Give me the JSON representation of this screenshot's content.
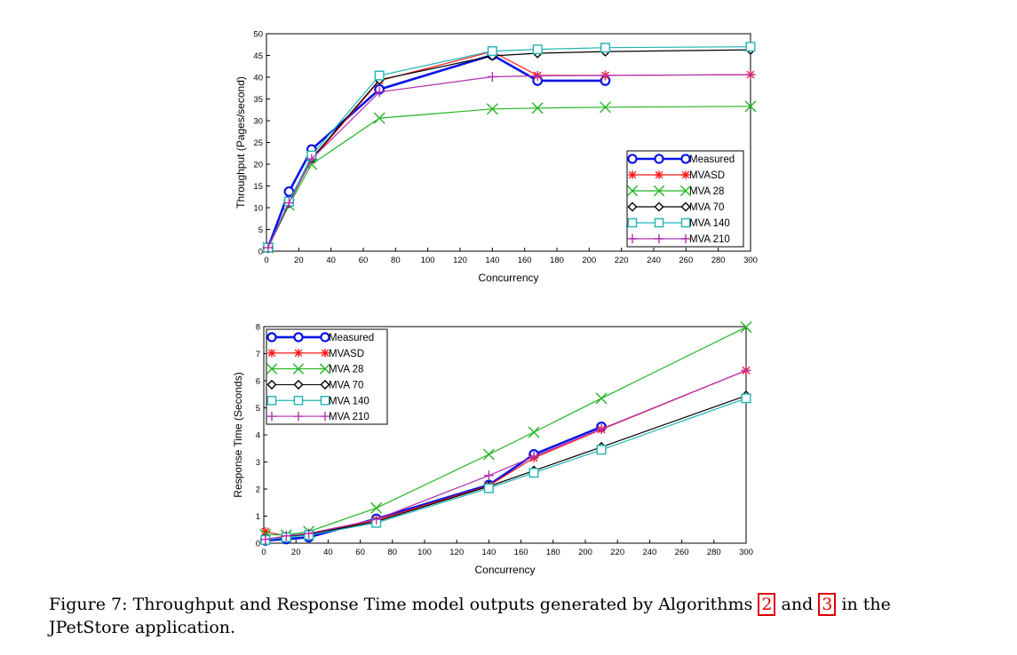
{
  "caption": {
    "prefix": "Figure 7: Throughput and Response Time model outputs generated by Algorithms",
    "ref1": "2",
    "mid": "and",
    "ref2": "3",
    "suffix": "in the JPetStore application."
  },
  "colors": {
    "Measured": "#0a14e6",
    "MVASD": "#ff1a1a",
    "MVA 28": "#22b422",
    "MVA 70": "#000000",
    "MVA 140": "#1fb3b3",
    "MVA 210": "#b030b0"
  },
  "chart_data": [
    {
      "type": "line",
      "xlabel": "Concurrency",
      "ylabel": "Throughput (Pages/second)",
      "xlim": [
        0,
        300
      ],
      "ylim": [
        0,
        50
      ],
      "xticks": [
        0,
        20,
        40,
        60,
        80,
        100,
        120,
        140,
        160,
        180,
        200,
        220,
        240,
        260,
        280,
        300
      ],
      "yticks": [
        0,
        5,
        10,
        15,
        20,
        25,
        30,
        35,
        40,
        45,
        50
      ],
      "legend_position": "bottom-right",
      "grid": false,
      "series": [
        {
          "name": "Measured",
          "marker": "circle",
          "x": [
            1,
            14,
            28,
            70,
            140,
            168,
            210
          ],
          "y": [
            0.8,
            13.7,
            23.4,
            37.2,
            45.1,
            39.2,
            39.2
          ]
        },
        {
          "name": "MVASD",
          "marker": "asterisk",
          "x": [
            1,
            14,
            28,
            70,
            140,
            168,
            210,
            300
          ],
          "y": [
            0.8,
            11.2,
            21.0,
            39.2,
            45.9,
            40.4,
            40.4,
            40.6
          ]
        },
        {
          "name": "MVA 28",
          "marker": "x",
          "x": [
            1,
            14,
            28,
            70,
            140,
            168,
            210,
            300
          ],
          "y": [
            0.8,
            10.6,
            20.0,
            30.6,
            32.7,
            32.9,
            33.1,
            33.3
          ]
        },
        {
          "name": "MVA 70",
          "marker": "diamond",
          "x": [
            1,
            14,
            28,
            70,
            140,
            168,
            210,
            300
          ],
          "y": [
            0.8,
            11.0,
            21.3,
            39.4,
            44.9,
            45.5,
            45.9,
            46.3
          ]
        },
        {
          "name": "MVA 140",
          "marker": "square",
          "x": [
            1,
            14,
            28,
            70,
            140,
            168,
            210,
            300
          ],
          "y": [
            0.8,
            11.4,
            22.0,
            40.4,
            46.0,
            46.4,
            46.8,
            47.0
          ]
        },
        {
          "name": "MVA 210",
          "marker": "plus",
          "x": [
            1,
            14,
            28,
            70,
            140,
            168,
            210,
            300
          ],
          "y": [
            0.8,
            11.1,
            21.2,
            36.6,
            40.1,
            40.3,
            40.4,
            40.6
          ]
        }
      ]
    },
    {
      "type": "line",
      "xlabel": "Concurrency",
      "ylabel": "Response Time (Seconds)",
      "xlim": [
        0,
        300
      ],
      "ylim": [
        0,
        8
      ],
      "xticks": [
        0,
        20,
        40,
        60,
        80,
        100,
        120,
        140,
        160,
        180,
        200,
        220,
        240,
        260,
        280,
        300
      ],
      "yticks": [
        0,
        1,
        2,
        3,
        4,
        5,
        6,
        7,
        8
      ],
      "legend_position": "top-left",
      "grid": false,
      "series": [
        {
          "name": "Measured",
          "marker": "circle",
          "x": [
            1,
            14,
            28,
            70,
            140,
            168,
            210
          ],
          "y": [
            0.1,
            0.15,
            0.22,
            0.9,
            2.15,
            3.28,
            4.3
          ]
        },
        {
          "name": "MVASD",
          "marker": "asterisk",
          "x": [
            1,
            14,
            28,
            70,
            140,
            168,
            210,
            300
          ],
          "y": [
            0.43,
            0.27,
            0.33,
            0.85,
            2.12,
            3.15,
            4.2,
            6.38
          ]
        },
        {
          "name": "MVA 28",
          "marker": "x",
          "x": [
            1,
            14,
            28,
            70,
            140,
            168,
            210,
            300
          ],
          "y": [
            0.32,
            0.3,
            0.43,
            1.3,
            3.28,
            4.1,
            5.35,
            7.98
          ]
        },
        {
          "name": "MVA 70",
          "marker": "diamond",
          "x": [
            1,
            14,
            28,
            70,
            140,
            168,
            210,
            300
          ],
          "y": [
            0.15,
            0.24,
            0.33,
            0.8,
            2.1,
            2.68,
            3.55,
            5.45
          ]
        },
        {
          "name": "MVA 140",
          "marker": "square",
          "x": [
            1,
            14,
            28,
            70,
            140,
            168,
            210,
            300
          ],
          "y": [
            0.12,
            0.22,
            0.3,
            0.75,
            2.03,
            2.6,
            3.45,
            5.35
          ]
        },
        {
          "name": "MVA 210",
          "marker": "plus",
          "x": [
            1,
            14,
            28,
            70,
            140,
            168,
            210,
            300
          ],
          "y": [
            0.14,
            0.27,
            0.36,
            0.88,
            2.5,
            3.2,
            4.22,
            6.38
          ]
        }
      ]
    }
  ]
}
